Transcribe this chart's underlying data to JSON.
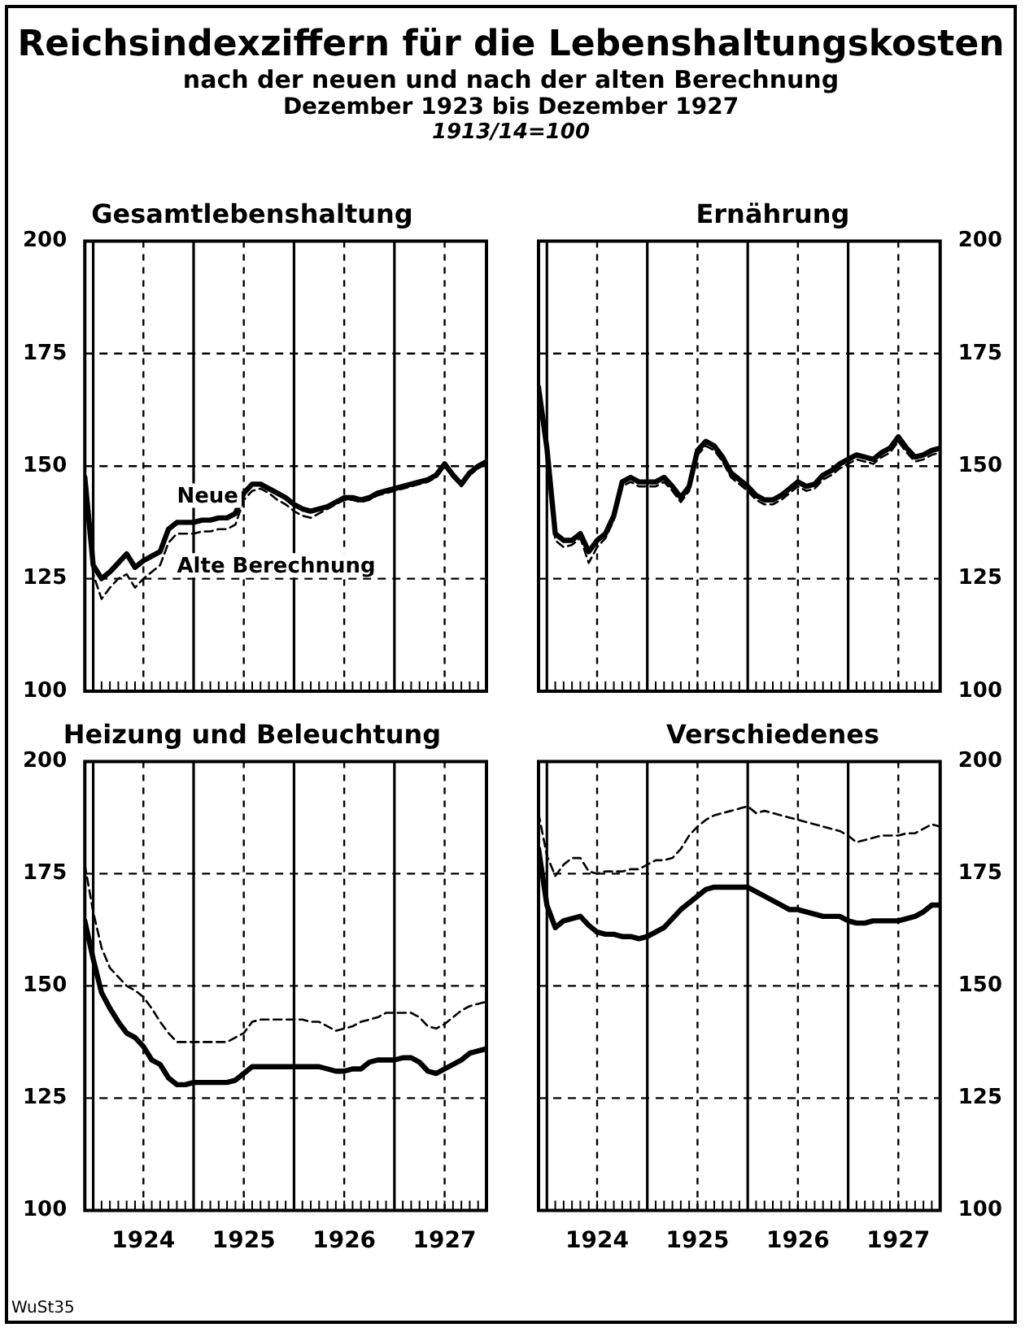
{
  "chart_data": [
    {
      "type": "other",
      "title": "Reichsindexziffern für die Lebenshaltungskosten",
      "subtitle": "nach der neuen und nach der alten Berechnung",
      "annotations": [
        "Dezember 1923 bis Dezember 1927",
        "1913/14=100",
        "WuSt35"
      ]
    },
    {
      "type": "line",
      "title": "Gesamtlebenshaltung",
      "x": [
        "1923-12",
        "1924-01",
        "1924-02",
        "1924-03",
        "1924-04",
        "1924-05",
        "1924-06",
        "1924-07",
        "1924-08",
        "1924-09",
        "1924-10",
        "1924-11",
        "1924-12",
        "1925-01",
        "1925-02",
        "1925-03",
        "1925-04",
        "1925-05",
        "1925-06",
        "1925-07",
        "1925-08",
        "1925-09",
        "1925-10",
        "1925-11",
        "1925-12",
        "1926-01",
        "1926-02",
        "1926-03",
        "1926-04",
        "1926-05",
        "1926-06",
        "1926-07",
        "1926-08",
        "1926-09",
        "1926-10",
        "1926-11",
        "1926-12",
        "1927-01",
        "1927-02",
        "1927-03",
        "1927-04",
        "1927-05",
        "1927-06",
        "1927-07",
        "1927-08",
        "1927-09",
        "1927-10",
        "1927-11",
        "1927-12"
      ],
      "series": [
        {
          "name": "Neue",
          "color": "#000000",
          "line_style": "solid",
          "values": [
            147.5,
            128,
            125,
            126.5,
            128.5,
            130.5,
            127.5,
            129,
            130,
            131,
            136,
            137.5,
            137.5,
            137.5,
            138,
            138,
            138.5,
            138.5,
            139.5,
            144,
            146,
            146,
            145,
            144,
            143,
            141.5,
            140.5,
            140,
            140.5,
            141,
            142,
            143,
            143,
            142.5,
            143,
            144,
            144.5,
            145,
            145.5,
            146,
            146.5,
            147,
            148,
            150.5,
            148,
            146,
            148.5,
            150,
            151
          ]
        },
        {
          "name": "Alte Berechnung",
          "color": "#000000",
          "line_style": "dashed",
          "values": [
            147.5,
            126,
            120.5,
            123,
            125,
            126,
            123,
            125,
            126.5,
            128,
            133,
            135,
            135,
            135,
            135.5,
            135.5,
            136,
            136,
            137,
            142.5,
            144.5,
            145,
            144,
            142.5,
            141.5,
            140,
            139,
            138.5,
            139.5,
            140.5,
            141.5,
            142.5,
            142.5,
            142,
            142.5,
            143.5,
            144,
            144.5,
            145,
            145.5,
            146,
            146.5,
            147.5,
            150,
            147.5,
            145.5,
            148,
            149.5,
            150.5
          ]
        }
      ],
      "xlim": [
        "1923-12",
        "1927-12"
      ],
      "xticks": [
        {
          "value": "1924-01",
          "label": null
        },
        {
          "value": "1924-07",
          "label": null
        },
        {
          "value": "1925-01",
          "label": null
        },
        {
          "value": "1925-07",
          "label": null
        },
        {
          "value": "1926-01",
          "label": null
        },
        {
          "value": "1926-07",
          "label": null
        },
        {
          "value": "1927-01",
          "label": null
        },
        {
          "value": "1927-07",
          "label": null
        }
      ],
      "ylim": [
        100,
        200
      ],
      "yticks": [
        100,
        125,
        150,
        175,
        200
      ],
      "grid": true,
      "tick_labels": "y"
    },
    {
      "type": "line",
      "title": "Ernährung",
      "x": [
        "1923-12",
        "1924-01",
        "1924-02",
        "1924-03",
        "1924-04",
        "1924-05",
        "1924-06",
        "1924-07",
        "1924-08",
        "1924-09",
        "1924-10",
        "1924-11",
        "1924-12",
        "1925-01",
        "1925-02",
        "1925-03",
        "1925-04",
        "1925-05",
        "1925-06",
        "1925-07",
        "1925-08",
        "1925-09",
        "1925-10",
        "1925-11",
        "1925-12",
        "1926-01",
        "1926-02",
        "1926-03",
        "1926-04",
        "1926-05",
        "1926-06",
        "1926-07",
        "1926-08",
        "1926-09",
        "1926-10",
        "1926-11",
        "1926-12",
        "1927-01",
        "1927-02",
        "1927-03",
        "1927-04",
        "1927-05",
        "1927-06",
        "1927-07",
        "1927-08",
        "1927-09",
        "1927-10",
        "1927-11",
        "1927-12"
      ],
      "series": [
        {
          "color": "#000000",
          "line_style": "solid",
          "values": [
            167.5,
            154,
            135,
            133.5,
            133.5,
            135,
            131,
            133.5,
            135,
            139,
            146.5,
            147.5,
            146.5,
            146.5,
            146.5,
            147.5,
            145.5,
            143,
            145.5,
            153.5,
            155.5,
            154.5,
            152,
            148.5,
            147,
            145.5,
            143.5,
            142.5,
            142.5,
            143.5,
            145,
            146.5,
            145.5,
            146,
            148,
            149,
            150.5,
            151.5,
            152.5,
            152,
            151.5,
            153,
            154,
            156.5,
            154,
            152,
            152.5,
            153.5,
            154
          ]
        },
        {
          "color": "#000000",
          "line_style": "dashed",
          "values": [
            167.5,
            152.5,
            133.5,
            132,
            132.5,
            134,
            128.5,
            132,
            134,
            138,
            145.5,
            146.5,
            145.5,
            145.5,
            145.5,
            146.5,
            144.5,
            142,
            144.5,
            152.5,
            154.5,
            153.5,
            151,
            147.5,
            146,
            144.5,
            142.5,
            141.5,
            141.5,
            142.5,
            144,
            145.5,
            144.5,
            145,
            147,
            148,
            149.5,
            150.5,
            151.5,
            151,
            150.5,
            152,
            153,
            155.5,
            153,
            151,
            151.5,
            152.5,
            153
          ]
        }
      ],
      "xlim": [
        "1923-12",
        "1927-12"
      ],
      "xticks": [
        {
          "value": "1924-01",
          "label": null
        },
        {
          "value": "1924-07",
          "label": null
        },
        {
          "value": "1925-01",
          "label": null
        },
        {
          "value": "1925-07",
          "label": null
        },
        {
          "value": "1926-01",
          "label": null
        },
        {
          "value": "1926-07",
          "label": null
        },
        {
          "value": "1927-01",
          "label": null
        },
        {
          "value": "1927-07",
          "label": null
        }
      ],
      "ylim": [
        100,
        200
      ],
      "yticks": [
        100,
        125,
        150,
        175,
        200
      ],
      "grid": true,
      "tick_labels": "y"
    },
    {
      "type": "line",
      "title": "Heizung und Beleuchtung",
      "x": [
        "1923-12",
        "1924-01",
        "1924-02",
        "1924-03",
        "1924-04",
        "1924-05",
        "1924-06",
        "1924-07",
        "1924-08",
        "1924-09",
        "1924-10",
        "1924-11",
        "1924-12",
        "1925-01",
        "1925-02",
        "1925-03",
        "1925-04",
        "1925-05",
        "1925-06",
        "1925-07",
        "1925-08",
        "1925-09",
        "1925-10",
        "1925-11",
        "1925-12",
        "1926-01",
        "1926-02",
        "1926-03",
        "1926-04",
        "1926-05",
        "1926-06",
        "1926-07",
        "1926-08",
        "1926-09",
        "1926-10",
        "1926-11",
        "1926-12",
        "1927-01",
        "1927-02",
        "1927-03",
        "1927-04",
        "1927-05",
        "1927-06",
        "1927-07",
        "1927-08",
        "1927-09",
        "1927-10",
        "1927-11",
        "1927-12"
      ],
      "series": [
        {
          "color": "#000000",
          "line_style": "solid",
          "values": [
            164.5,
            156,
            148.5,
            145,
            142,
            139.5,
            138.5,
            136.5,
            133.5,
            132.5,
            129.5,
            128,
            128,
            128.5,
            128.5,
            128.5,
            128.5,
            128.5,
            129,
            130.5,
            132,
            132,
            132,
            132,
            132,
            132,
            132,
            132,
            132,
            131.5,
            131,
            131,
            131.5,
            131.5,
            133,
            133.5,
            133.5,
            133.5,
            134,
            134,
            133,
            131,
            130.5,
            131.5,
            132.5,
            133.5,
            135,
            135.5,
            136
          ]
        },
        {
          "color": "#000000",
          "line_style": "dashed",
          "values": [
            177,
            166.5,
            158.5,
            154,
            152,
            150,
            149,
            147.5,
            145,
            142,
            139.5,
            137.5,
            137.5,
            137.5,
            137.5,
            137.5,
            137.5,
            137.5,
            138.5,
            139.5,
            142,
            142.5,
            142.5,
            142.5,
            142.5,
            142.5,
            142.5,
            142,
            142,
            141,
            140,
            140.5,
            141,
            142,
            142.5,
            143,
            144,
            144,
            144,
            144,
            143,
            141,
            140.5,
            141.5,
            143,
            144.5,
            145.5,
            146,
            146.5
          ]
        }
      ],
      "xlim": [
        "1923-12",
        "1927-12"
      ],
      "xticks": [
        {
          "value": "1924-01",
          "label": null
        },
        {
          "value": "1924-07",
          "label": "1924"
        },
        {
          "value": "1925-01",
          "label": null
        },
        {
          "value": "1925-07",
          "label": "1925"
        },
        {
          "value": "1926-01",
          "label": null
        },
        {
          "value": "1926-07",
          "label": "1926"
        },
        {
          "value": "1927-01",
          "label": null
        },
        {
          "value": "1927-07",
          "label": "1927"
        }
      ],
      "ylim": [
        100,
        200
      ],
      "yticks": [
        100,
        125,
        150,
        175,
        200
      ],
      "grid": true
    },
    {
      "type": "line",
      "title": "Verschiedenes",
      "x": [
        "1923-12",
        "1924-01",
        "1924-02",
        "1924-03",
        "1924-04",
        "1924-05",
        "1924-06",
        "1924-07",
        "1924-08",
        "1924-09",
        "1924-10",
        "1924-11",
        "1924-12",
        "1925-01",
        "1925-02",
        "1925-03",
        "1925-04",
        "1925-05",
        "1925-06",
        "1925-07",
        "1925-08",
        "1925-09",
        "1925-10",
        "1925-11",
        "1925-12",
        "1926-01",
        "1926-02",
        "1926-03",
        "1926-04",
        "1926-05",
        "1926-06",
        "1926-07",
        "1926-08",
        "1926-09",
        "1926-10",
        "1926-11",
        "1926-12",
        "1927-01",
        "1927-02",
        "1927-03",
        "1927-04",
        "1927-05",
        "1927-06",
        "1927-07",
        "1927-08",
        "1927-09",
        "1927-10",
        "1927-11",
        "1927-12"
      ],
      "series": [
        {
          "color": "#000000",
          "line_style": "solid",
          "values": [
            180.5,
            168,
            163,
            164.5,
            165,
            165.5,
            163.5,
            162,
            161.5,
            161.5,
            161,
            161,
            160.5,
            161,
            162,
            163,
            165,
            167,
            168.5,
            170,
            171.5,
            172,
            172,
            172,
            172,
            172,
            171,
            170,
            169,
            168,
            167,
            167,
            166.5,
            166,
            165.5,
            165.5,
            165.5,
            164.5,
            164,
            164,
            164.5,
            164.5,
            164.5,
            164.5,
            165,
            165.5,
            166.5,
            168,
            168
          ]
        },
        {
          "color": "#000000",
          "line_style": "dashed",
          "values": [
            188.5,
            179,
            174.5,
            177,
            178.5,
            178.5,
            175.5,
            175,
            175.5,
            175.5,
            175.5,
            176,
            176,
            177,
            178,
            178,
            178.5,
            180.5,
            183.5,
            185.5,
            187,
            188,
            188.5,
            189,
            189.5,
            190,
            188.5,
            189,
            188.5,
            188,
            187.5,
            187,
            186.5,
            186,
            185.5,
            185,
            184.5,
            183.5,
            182,
            182.5,
            183,
            183.5,
            183.5,
            183.5,
            184,
            184,
            185,
            186,
            185.5
          ]
        }
      ],
      "xlim": [
        "1923-12",
        "1927-12"
      ],
      "xticks": [
        {
          "value": "1924-01",
          "label": null
        },
        {
          "value": "1924-07",
          "label": "1924"
        },
        {
          "value": "1925-01",
          "label": null
        },
        {
          "value": "1925-07",
          "label": "1925"
        },
        {
          "value": "1926-01",
          "label": null
        },
        {
          "value": "1926-07",
          "label": "1926"
        },
        {
          "value": "1927-01",
          "label": null
        },
        {
          "value": "1927-07",
          "label": "1927"
        }
      ],
      "ylim": [
        100,
        200
      ],
      "yticks": [
        100,
        125,
        150,
        175,
        200
      ],
      "grid": true
    }
  ]
}
